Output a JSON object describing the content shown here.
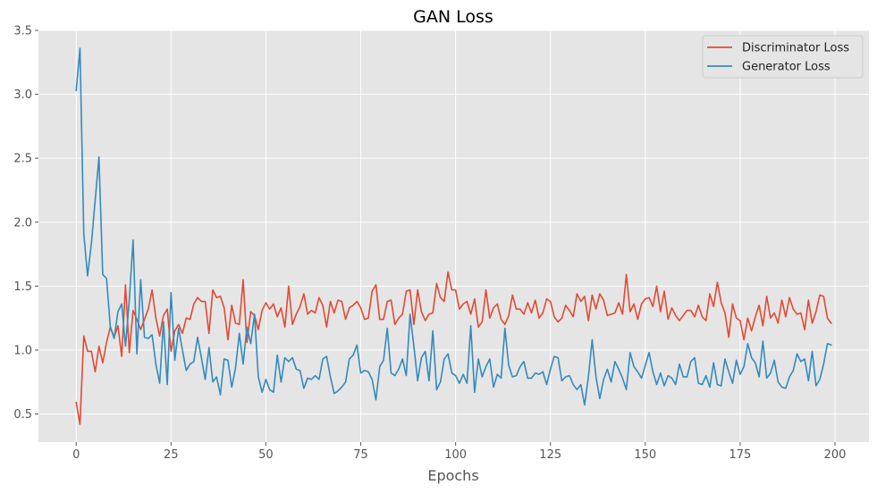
{
  "chart_data": {
    "type": "line",
    "title": "GAN Loss",
    "xlabel": "Epochs",
    "ylabel": "",
    "xlim": [
      -9.95,
      208.95
    ],
    "ylim": [
      0.28,
      3.5
    ],
    "xticks": [
      0,
      25,
      50,
      75,
      100,
      125,
      150,
      175,
      200
    ],
    "yticks": [
      0.5,
      1.0,
      1.5,
      2.0,
      2.5,
      3.0,
      3.5
    ],
    "xtick_labels": [
      "0",
      "25",
      "50",
      "75",
      "100",
      "125",
      "150",
      "175",
      "200"
    ],
    "ytick_labels": [
      "0.5",
      "1.0",
      "1.5",
      "2.0",
      "2.5",
      "3.0",
      "3.5"
    ],
    "grid": true,
    "legend_position": "upper-right",
    "style": "ggplot",
    "series": [
      {
        "name": "Discriminator Loss",
        "color": "#E24A33",
        "values": [
          0.59,
          0.42,
          1.11,
          0.99,
          0.99,
          0.83,
          1.03,
          0.9,
          1.06,
          1.18,
          1.1,
          1.19,
          0.95,
          1.51,
          0.98,
          1.31,
          1.24,
          1.16,
          1.24,
          1.32,
          1.47,
          1.25,
          1.11,
          1.27,
          1.32,
          0.99,
          1.15,
          1.2,
          1.13,
          1.25,
          1.24,
          1.36,
          1.41,
          1.38,
          1.38,
          1.13,
          1.47,
          1.41,
          1.42,
          1.33,
          1.08,
          1.35,
          1.21,
          1.2,
          1.55,
          1.06,
          1.3,
          1.27,
          1.16,
          1.31,
          1.37,
          1.32,
          1.36,
          1.26,
          1.33,
          1.18,
          1.5,
          1.2,
          1.28,
          1.34,
          1.44,
          1.28,
          1.31,
          1.29,
          1.41,
          1.35,
          1.18,
          1.38,
          1.29,
          1.39,
          1.38,
          1.24,
          1.33,
          1.35,
          1.38,
          1.33,
          1.24,
          1.25,
          1.46,
          1.51,
          1.24,
          1.24,
          1.38,
          1.39,
          1.2,
          1.25,
          1.28,
          1.46,
          1.47,
          1.2,
          1.47,
          1.3,
          1.23,
          1.28,
          1.29,
          1.52,
          1.41,
          1.38,
          1.61,
          1.47,
          1.47,
          1.32,
          1.36,
          1.38,
          1.28,
          1.4,
          1.18,
          1.22,
          1.47,
          1.25,
          1.33,
          1.36,
          1.24,
          1.2,
          1.27,
          1.43,
          1.32,
          1.32,
          1.28,
          1.37,
          1.29,
          1.39,
          1.25,
          1.29,
          1.4,
          1.38,
          1.26,
          1.22,
          1.25,
          1.35,
          1.31,
          1.26,
          1.44,
          1.38,
          1.42,
          1.23,
          1.43,
          1.32,
          1.44,
          1.39,
          1.27,
          1.28,
          1.29,
          1.37,
          1.28,
          1.59,
          1.3,
          1.36,
          1.24,
          1.36,
          1.4,
          1.41,
          1.34,
          1.5,
          1.3,
          1.46,
          1.24,
          1.33,
          1.27,
          1.23,
          1.27,
          1.31,
          1.31,
          1.26,
          1.35,
          1.26,
          1.23,
          1.44,
          1.34,
          1.53,
          1.37,
          1.29,
          1.1,
          1.36,
          1.25,
          1.23,
          1.08,
          1.25,
          1.15,
          1.26,
          1.35,
          1.19,
          1.42,
          1.25,
          1.29,
          1.21,
          1.39,
          1.26,
          1.41,
          1.32,
          1.28,
          1.29,
          1.16,
          1.39,
          1.21,
          1.3,
          1.43,
          1.42,
          1.25,
          1.21
        ]
      },
      {
        "name": "Generator Loss",
        "color": "#348ABD",
        "values": [
          3.03,
          3.36,
          1.91,
          1.58,
          1.83,
          2.17,
          2.51,
          1.59,
          1.56,
          1.18,
          1.09,
          1.3,
          1.36,
          1.03,
          1.39,
          1.86,
          0.97,
          1.55,
          1.1,
          1.09,
          1.12,
          0.89,
          0.74,
          1.22,
          0.73,
          1.45,
          0.92,
          1.17,
          1.0,
          0.84,
          0.89,
          0.91,
          1.1,
          0.94,
          0.77,
          1.02,
          0.75,
          0.79,
          0.65,
          0.93,
          0.92,
          0.71,
          0.86,
          1.13,
          0.89,
          1.18,
          1.05,
          1.28,
          0.79,
          0.67,
          0.77,
          0.69,
          0.67,
          0.96,
          0.75,
          0.94,
          0.91,
          0.94,
          0.85,
          0.84,
          0.7,
          0.78,
          0.77,
          0.8,
          0.77,
          0.93,
          0.95,
          0.79,
          0.66,
          0.68,
          0.71,
          0.75,
          0.93,
          0.96,
          1.04,
          0.82,
          0.84,
          0.83,
          0.77,
          0.61,
          0.87,
          0.92,
          1.17,
          0.82,
          0.8,
          0.85,
          0.93,
          0.8,
          1.28,
          1.03,
          0.76,
          0.94,
          0.99,
          0.76,
          1.15,
          0.69,
          0.75,
          0.93,
          0.97,
          0.82,
          0.8,
          0.74,
          0.81,
          0.74,
          1.19,
          0.67,
          0.93,
          0.79,
          0.87,
          0.93,
          0.71,
          0.81,
          0.78,
          1.17,
          0.88,
          0.79,
          0.8,
          0.87,
          0.91,
          0.78,
          0.78,
          0.82,
          0.81,
          0.83,
          0.73,
          0.85,
          0.95,
          0.94,
          0.76,
          0.79,
          0.8,
          0.73,
          0.69,
          0.73,
          0.57,
          0.79,
          1.08,
          0.79,
          0.62,
          0.77,
          0.85,
          0.75,
          0.91,
          0.85,
          0.78,
          0.69,
          0.98,
          0.87,
          0.83,
          0.78,
          0.88,
          0.98,
          0.83,
          0.73,
          0.82,
          0.72,
          0.8,
          0.78,
          0.73,
          0.89,
          0.79,
          0.79,
          0.91,
          0.94,
          0.74,
          0.73,
          0.8,
          0.71,
          0.9,
          0.73,
          0.72,
          0.93,
          0.83,
          0.74,
          0.92,
          0.81,
          0.87,
          1.05,
          0.94,
          0.9,
          0.79,
          1.07,
          0.78,
          0.82,
          0.92,
          0.75,
          0.71,
          0.7,
          0.79,
          0.84,
          0.97,
          0.91,
          0.93,
          0.76,
          0.99,
          0.72,
          0.77,
          0.89,
          1.05,
          1.04
        ]
      }
    ]
  }
}
